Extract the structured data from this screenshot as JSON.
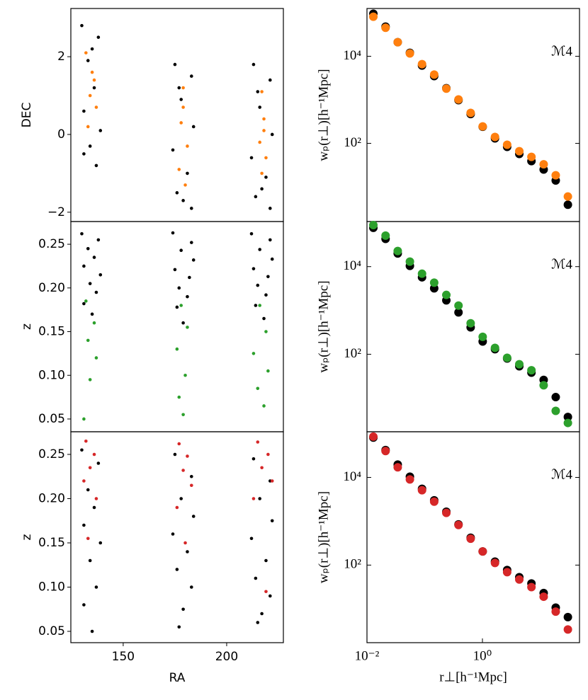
{
  "chart_data": [
    {
      "type": "scatter",
      "y_label": "DEC",
      "xlim": [
        124.7,
        227.4
      ],
      "ylim": [
        -2.24,
        3.24
      ],
      "yticks": [
        {
          "value": -2,
          "label": "−2"
        },
        0,
        2
      ],
      "series": [
        {
          "color": "#000000",
          "x": [
            130,
            138,
            133,
            136,
            131,
            139,
            134,
            137,
            131,
            135,
            175,
            183,
            178,
            184,
            174,
            181,
            176,
            183,
            179,
            177,
            213,
            221,
            216,
            222,
            212,
            219,
            214,
            221,
            217,
            215
          ],
          "values": [
            2.8,
            2.5,
            1.9,
            1.2,
            0.6,
            0.1,
            -0.3,
            -0.8,
            -0.5,
            2.2,
            1.8,
            1.5,
            0.9,
            0.2,
            -0.4,
            -1.0,
            -1.5,
            -1.9,
            -1.7,
            1.2,
            1.8,
            1.4,
            0.7,
            0.0,
            -0.6,
            -1.1,
            -1.6,
            -1.9,
            -1.4,
            1.1
          ]
        },
        {
          "color": "#ff7f0e",
          "x": [
            132,
            135,
            134,
            137,
            133,
            136,
            179,
            178,
            181,
            177,
            180,
            179,
            217,
            218,
            216,
            219,
            217,
            218
          ],
          "values": [
            2.1,
            1.6,
            1.0,
            0.7,
            0.2,
            1.4,
            1.2,
            0.3,
            -0.3,
            -0.9,
            -1.3,
            0.7,
            1.1,
            0.4,
            -0.2,
            -0.6,
            -1.0,
            0.1
          ]
        }
      ]
    },
    {
      "type": "errorbar",
      "y_label": "wₚ(r⊥)[h⁻¹Mpc]",
      "annotation": "ℳ4",
      "xscale": "log",
      "yscale": "log",
      "xlim": [
        0.01,
        48
      ],
      "ylim": [
        1.6,
        125000
      ],
      "yticks": [
        {
          "value": 100,
          "label": "10²"
        },
        {
          "value": 10000,
          "label": "10⁴"
        }
      ],
      "x": [
        0.0129,
        0.021,
        0.0341,
        0.0554,
        0.0899,
        0.146,
        0.237,
        0.385,
        0.625,
        1.01,
        1.65,
        2.68,
        4.35,
        7.06,
        11.5,
        18.6,
        30.2
      ],
      "series": [
        {
          "color": "#000000",
          "values": [
            95000,
            48000,
            21000,
            12000,
            6100,
            3500,
            1850,
            980,
            470,
            240,
            130,
            83,
            57,
            39,
            25,
            14,
            3.9
          ]
        },
        {
          "color": "#ff7f0e",
          "values": [
            81000,
            45000,
            21000,
            11600,
            6600,
            3800,
            1800,
            1020,
            500,
            245,
            140,
            93,
            66,
            49,
            33,
            18.5,
            6.0
          ]
        }
      ]
    },
    {
      "type": "scatter",
      "y_label": "z",
      "xlim": [
        124.7,
        227.4
      ],
      "ylim": [
        0.0354,
        0.276
      ],
      "yticks": [
        0.05,
        {
          "value": 0.1,
          "label": "0.10"
        },
        0.15,
        {
          "value": 0.2,
          "label": "0.20"
        },
        0.25
      ],
      "series": [
        {
          "color": "#000000",
          "x": [
            130,
            138,
            133,
            136,
            131,
            139,
            134,
            137,
            131,
            135,
            174,
            183,
            178,
            184,
            175,
            182,
            177,
            181,
            176,
            179,
            212,
            221,
            216,
            222,
            213,
            220,
            215,
            219,
            214,
            218
          ],
          "values": [
            0.262,
            0.255,
            0.245,
            0.235,
            0.225,
            0.215,
            0.205,
            0.195,
            0.182,
            0.17,
            0.263,
            0.252,
            0.243,
            0.232,
            0.221,
            0.212,
            0.2,
            0.19,
            0.178,
            0.16,
            0.262,
            0.255,
            0.244,
            0.233,
            0.222,
            0.213,
            0.203,
            0.192,
            0.18,
            0.165
          ]
        },
        {
          "color": "#2ca02c",
          "x": [
            132,
            136,
            133,
            137,
            134,
            131,
            178,
            181,
            176,
            180,
            177,
            179,
            216,
            219,
            213,
            220,
            215,
            218
          ],
          "values": [
            0.185,
            0.16,
            0.14,
            0.12,
            0.095,
            0.05,
            0.18,
            0.155,
            0.13,
            0.1,
            0.075,
            0.055,
            0.18,
            0.15,
            0.125,
            0.105,
            0.085,
            0.065
          ]
        }
      ]
    },
    {
      "type": "errorbar",
      "y_label": "wₚ(r⊥)[h⁻¹Mpc]",
      "annotation": "ℳ4",
      "xscale": "log",
      "yscale": "log",
      "xlim": [
        0.01,
        48
      ],
      "ylim": [
        1.7,
        107000
      ],
      "yticks": [
        {
          "value": 100,
          "label": "10²"
        },
        {
          "value": 10000,
          "label": "10⁴"
        }
      ],
      "x": [
        0.0129,
        0.021,
        0.0341,
        0.0554,
        0.0899,
        0.146,
        0.237,
        0.385,
        0.625,
        1.01,
        1.65,
        2.68,
        4.35,
        7.06,
        11.5,
        18.6,
        30.2
      ],
      "series": [
        {
          "color": "#000000",
          "values": [
            77000,
            43000,
            20000,
            10400,
            5700,
            3200,
            1700,
            900,
            410,
            195,
            130,
            80,
            53,
            38,
            26,
            10.5,
            3.7
          ]
        },
        {
          "color": "#2ca02c",
          "values": [
            89000,
            51000,
            22700,
            13000,
            6900,
            4300,
            2260,
            1290,
            510,
            250,
            140,
            83,
            59,
            43,
            19.5,
            5.1,
            2.7
          ]
        }
      ]
    },
    {
      "type": "scatter",
      "y_label": "z",
      "x_label": "RA",
      "xlim": [
        124.7,
        227.4
      ],
      "ylim": [
        0.0372,
        0.2756
      ],
      "xticks": [
        150,
        200
      ],
      "yticks": [
        0.05,
        {
          "value": 0.1,
          "label": "0.10"
        },
        0.15,
        {
          "value": 0.2,
          "label": "0.20"
        },
        0.25
      ],
      "series": [
        {
          "color": "#000000",
          "x": [
            130,
            138,
            133,
            136,
            131,
            139,
            134,
            137,
            131,
            135,
            175,
            183,
            178,
            184,
            174,
            181,
            176,
            183,
            179,
            177,
            213,
            221,
            216,
            222,
            212,
            219,
            214,
            221,
            217,
            215
          ],
          "values": [
            0.255,
            0.24,
            0.21,
            0.19,
            0.17,
            0.15,
            0.13,
            0.1,
            0.08,
            0.05,
            0.25,
            0.225,
            0.2,
            0.18,
            0.16,
            0.14,
            0.12,
            0.1,
            0.075,
            0.055,
            0.245,
            0.22,
            0.2,
            0.175,
            0.155,
            0.13,
            0.11,
            0.09,
            0.07,
            0.06
          ]
        },
        {
          "color": "#d62728",
          "x": [
            132,
            136,
            134,
            131,
            137,
            133,
            177,
            181,
            179,
            183,
            176,
            180,
            215,
            220,
            217,
            222,
            213,
            219
          ],
          "values": [
            0.265,
            0.25,
            0.235,
            0.22,
            0.2,
            0.155,
            0.262,
            0.248,
            0.232,
            0.215,
            0.19,
            0.15,
            0.264,
            0.25,
            0.235,
            0.22,
            0.2,
            0.095
          ]
        }
      ]
    },
    {
      "type": "errorbar",
      "y_label": "wₚ(r⊥)[h⁻¹Mpc]",
      "x_label": "r⊥[h⁻¹Mpc]",
      "annotation": "ℳ4",
      "xscale": "log",
      "yscale": "log",
      "xlim": [
        0.01,
        48
      ],
      "ylim": [
        1.7,
        110000
      ],
      "xticks": [
        {
          "value": 0.01,
          "label": "10⁻²"
        },
        {
          "value": 1,
          "label": "10⁰"
        }
      ],
      "yticks": [
        {
          "value": 100,
          "label": "10²"
        },
        {
          "value": 10000,
          "label": "10⁴"
        }
      ],
      "x": [
        0.0129,
        0.021,
        0.0341,
        0.0554,
        0.0899,
        0.146,
        0.237,
        0.385,
        0.625,
        1.01,
        1.65,
        2.68,
        4.35,
        7.06,
        11.5,
        18.6,
        30.2
      ],
      "series": [
        {
          "color": "#000000",
          "values": [
            81000,
            42000,
            19600,
            10400,
            5500,
            3000,
            1650,
            850,
            420,
            205,
            120,
            77,
            53,
            38,
            23,
            10.7,
            6.5
          ]
        },
        {
          "color": "#d62728",
          "values": [
            85000,
            40000,
            17000,
            9000,
            5100,
            2800,
            1550,
            820,
            400,
            205,
            112,
            69,
            47,
            31.5,
            19,
            8.7,
            3.4
          ]
        }
      ]
    }
  ]
}
